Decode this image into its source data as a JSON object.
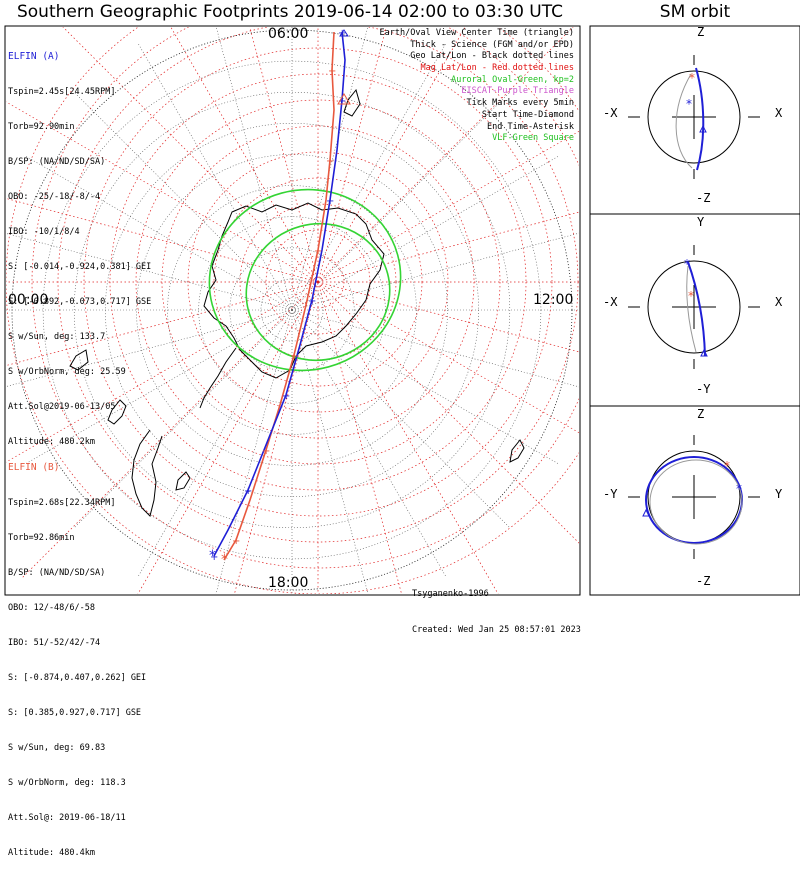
{
  "title": "Southern Geographic Footprints 2019-06-14 02:00 to 03:30 UTC",
  "sm_title": "SM orbit",
  "hour_labels": {
    "top": "06:00",
    "left": "00:00",
    "right": "12:00",
    "bottom": "18:00"
  },
  "elfin_a": {
    "name": "ELFIN (A)",
    "lines": [
      "Tspin=2.45s[24.45RPM]",
      "Torb=92.90min",
      "B/SP: (NA/ND/SD/SA)",
      "OBO: -25/-18/-8/-4",
      "IBO: -10/1/8/4",
      "S: [-0.014,-0.924,0.381] GEI",
      "S: [-0.892,-0.073,0.717] GSE",
      "S w/Sun, deg: 133.7",
      "S w/OrbNorm, deg: 25.59",
      "Att.Sol@2019-06-13/05",
      "Altitude: 480.2km"
    ],
    "color": "#1f1fd6"
  },
  "elfin_b": {
    "name": "ELFIN (B)",
    "lines": [
      "Tspin=2.68s[22.34RPM]",
      "Torb=92.86min",
      "B/SP: (NA/ND/SD/SA)",
      "OBO: 12/-48/6/-58",
      "IBO: 51/-52/42/-74",
      "S: [-0.874,0.407,0.262] GEI",
      "S: [0.385,0.927,0.717] GSE",
      "S w/Sun, deg: 69.83",
      "S w/OrbNorm, deg: 118.3",
      "Att.Sol@: 2019-06-18/11",
      "Altitude: 480.4km"
    ],
    "color": "#e8583e"
  },
  "legend": [
    {
      "text": "Earth/Oval View Center Time (triangle)",
      "color": "#000000"
    },
    {
      "text": "Thick - Science (FGM and/or EPD)",
      "color": "#000000"
    },
    {
      "text": "Geo Lat/Lon - Black dotted lines",
      "color": "#000000"
    },
    {
      "text": "Mag Lat/Lon - Red dotted lines",
      "color": "#e01010"
    },
    {
      "text": "Auroral Oval-Green, kp=2",
      "color": "#20c020"
    },
    {
      "text": "EISCAT-Purple Triangle",
      "color": "#cc55cc"
    },
    {
      "text": "Tick Marks every 5min",
      "color": "#000000"
    },
    {
      "text": "Start Time-Diamond",
      "color": "#000000"
    },
    {
      "text": "End Time-Asterisk",
      "color": "#000000"
    },
    {
      "text": "VLF-Green Square",
      "color": "#20c020"
    }
  ],
  "credits": [
    "Tsyganenko-1996",
    "Created: Wed Jan 25 08:57:01 2023"
  ],
  "sm_panels": [
    {
      "top": "Z",
      "bottom": "-Z",
      "left": "-X",
      "right": "X"
    },
    {
      "top": "Y",
      "bottom": "-Y",
      "left": "-X",
      "right": "X"
    },
    {
      "top": "Z",
      "bottom": "-Z",
      "left": "-Y",
      "right": "Y"
    }
  ],
  "colors": {
    "elfin_a": "#1f1fd6",
    "elfin_b": "#e8583e",
    "oval": "#34d434",
    "mag_grid": "#e02020",
    "geo_grid": "#555555"
  },
  "chart_data": [
    {
      "type": "polar_map",
      "hemisphere": "southern",
      "time_range_utc": [
        "2019-06-14 02:00",
        "2019-06-14 03:30"
      ],
      "local_time_labels": [
        "06:00",
        "12:00",
        "18:00",
        "00:00"
      ],
      "series": [
        {
          "name": "ELFIN (A)"
        },
        {
          "name": "ELFIN (B)"
        }
      ]
    },
    {
      "type": "line",
      "title": "SM orbit",
      "panels": 3
    }
  ]
}
